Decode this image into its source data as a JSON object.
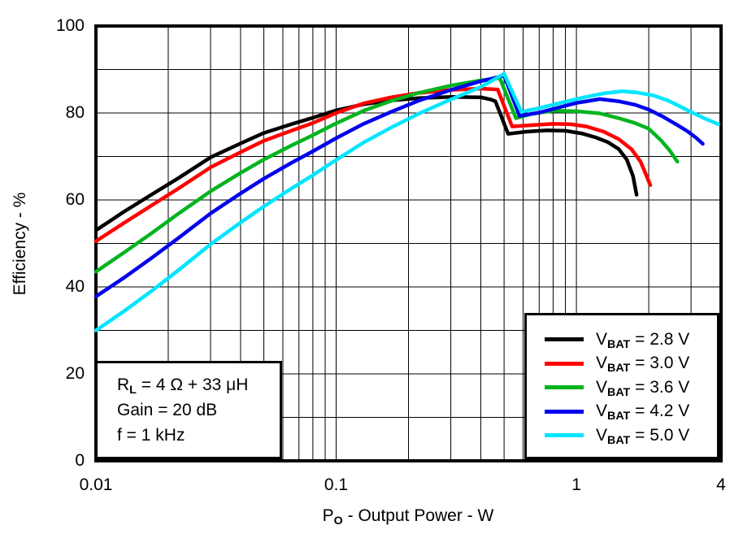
{
  "page": {
    "background": "#ffffff"
  },
  "axes": {
    "x": {
      "title_prefix": "P",
      "title_sub": "O",
      "title_rest": " - Output Power - W",
      "scale": "log"
    },
    "y": {
      "title": "Efficiency - %"
    }
  },
  "conditions_box": {
    "line1_prefix": "R",
    "line1_sub": "L",
    "line1_rest": " = 4 Ω + 33 μH",
    "line2": "Gain = 20 dB",
    "line3": "f = 1 kHz"
  },
  "legend": {
    "entries": [
      {
        "id": "vbat-2.8",
        "prefix": "V",
        "sub": "BAT",
        "rest": " = 2.8 V",
        "color": "#000000"
      },
      {
        "id": "vbat-3.0",
        "prefix": "V",
        "sub": "BAT",
        "rest": " = 3.0 V",
        "color": "#ff0000"
      },
      {
        "id": "vbat-3.6",
        "prefix": "V",
        "sub": "BAT",
        "rest": " = 3.6 V",
        "color": "#00b41e"
      },
      {
        "id": "vbat-4.2",
        "prefix": "V",
        "sub": "BAT",
        "rest": " = 4.2 V",
        "color": "#0000ee"
      },
      {
        "id": "vbat-5.0",
        "prefix": "V",
        "sub": "BAT",
        "rest": " = 5.0 V",
        "color": "#00e6ff"
      }
    ]
  },
  "chart_data": {
    "type": "line",
    "title": "",
    "xlabel": "PO - Output Power - W",
    "ylabel": "Efficiency - %",
    "xscale": "log",
    "xlim": [
      0.01,
      4
    ],
    "ylim": [
      0,
      100
    ],
    "grid": true,
    "legend_position": "lower right",
    "xticks": [
      "0.01",
      "0.1",
      "1",
      "4"
    ],
    "yticks": [
      "0",
      "20",
      "40",
      "60",
      "80",
      "100"
    ],
    "x_gridlines": [
      0.02,
      0.03,
      0.04,
      0.05,
      0.06,
      0.07,
      0.08,
      0.09,
      0.1,
      0.2,
      0.3,
      0.4,
      0.5,
      0.6,
      0.7,
      0.8,
      0.9,
      1,
      2,
      3
    ],
    "y_gridlines": [
      10,
      20,
      30,
      40,
      50,
      60,
      70,
      80,
      90
    ],
    "series": [
      {
        "id": "vbat-2.8",
        "name": "VBAT = 2.8 V",
        "color": "#000000",
        "points": [
          [
            0.01,
            53
          ],
          [
            0.013,
            57.2
          ],
          [
            0.017,
            61.2
          ],
          [
            0.022,
            65
          ],
          [
            0.03,
            69.8
          ],
          [
            0.04,
            73
          ],
          [
            0.05,
            75.4
          ],
          [
            0.065,
            77.4
          ],
          [
            0.08,
            78.9
          ],
          [
            0.1,
            80.6
          ],
          [
            0.13,
            82
          ],
          [
            0.17,
            82.9
          ],
          [
            0.22,
            83.4
          ],
          [
            0.3,
            83.7
          ],
          [
            0.4,
            83.6
          ],
          [
            0.44,
            83.1
          ],
          [
            0.46,
            82.7
          ],
          [
            0.52,
            75.2
          ],
          [
            0.62,
            75.7
          ],
          [
            0.75,
            76
          ],
          [
            0.9,
            75.9
          ],
          [
            1.05,
            75.3
          ],
          [
            1.2,
            74.4
          ],
          [
            1.35,
            73.3
          ],
          [
            1.5,
            71.7
          ],
          [
            1.62,
            69.3
          ],
          [
            1.72,
            65.5
          ],
          [
            1.78,
            61.2
          ]
        ]
      },
      {
        "id": "vbat-3.0",
        "name": "VBAT = 3.0 V",
        "color": "#ff0000",
        "points": [
          [
            0.01,
            50.5
          ],
          [
            0.013,
            54.6
          ],
          [
            0.017,
            58.7
          ],
          [
            0.022,
            62.6
          ],
          [
            0.03,
            67.5
          ],
          [
            0.04,
            71
          ],
          [
            0.05,
            73.6
          ],
          [
            0.065,
            75.9
          ],
          [
            0.08,
            77.7
          ],
          [
            0.1,
            80
          ],
          [
            0.13,
            82.2
          ],
          [
            0.17,
            83.6
          ],
          [
            0.22,
            84.6
          ],
          [
            0.3,
            85.3
          ],
          [
            0.4,
            85.6
          ],
          [
            0.47,
            85.4
          ],
          [
            0.54,
            76.9
          ],
          [
            0.65,
            77.2
          ],
          [
            0.8,
            77.5
          ],
          [
            0.95,
            77.4
          ],
          [
            1.1,
            76.9
          ],
          [
            1.3,
            75.7
          ],
          [
            1.5,
            74
          ],
          [
            1.7,
            71.6
          ],
          [
            1.85,
            68.8
          ],
          [
            1.97,
            65.2
          ],
          [
            2.03,
            63.4
          ]
        ]
      },
      {
        "id": "vbat-3.6",
        "name": "VBAT = 3.6 V",
        "color": "#00b41e",
        "points": [
          [
            0.01,
            43.5
          ],
          [
            0.013,
            47.8
          ],
          [
            0.017,
            52.3
          ],
          [
            0.022,
            56.8
          ],
          [
            0.03,
            62
          ],
          [
            0.04,
            66.2
          ],
          [
            0.05,
            69.3
          ],
          [
            0.065,
            72.5
          ],
          [
            0.08,
            74.9
          ],
          [
            0.1,
            77.6
          ],
          [
            0.13,
            80.5
          ],
          [
            0.17,
            82.8
          ],
          [
            0.22,
            84.6
          ],
          [
            0.3,
            86.3
          ],
          [
            0.4,
            87.5
          ],
          [
            0.48,
            88
          ],
          [
            0.56,
            78.8
          ],
          [
            0.65,
            79.8
          ],
          [
            0.8,
            80.5
          ],
          [
            1.0,
            80.4
          ],
          [
            1.25,
            79.9
          ],
          [
            1.5,
            78.8
          ],
          [
            1.75,
            77.7
          ],
          [
            2.0,
            76.4
          ],
          [
            2.25,
            73.7
          ],
          [
            2.45,
            71.3
          ],
          [
            2.63,
            68.8
          ]
        ]
      },
      {
        "id": "vbat-4.2",
        "name": "VBAT = 4.2 V",
        "color": "#0000ee",
        "points": [
          [
            0.01,
            37.8
          ],
          [
            0.013,
            42
          ],
          [
            0.017,
            46.6
          ],
          [
            0.022,
            51.2
          ],
          [
            0.03,
            56.9
          ],
          [
            0.04,
            61.5
          ],
          [
            0.05,
            64.9
          ],
          [
            0.065,
            68.5
          ],
          [
            0.08,
            71.2
          ],
          [
            0.1,
            74.2
          ],
          [
            0.13,
            77.5
          ],
          [
            0.17,
            80.3
          ],
          [
            0.22,
            82.8
          ],
          [
            0.3,
            85.3
          ],
          [
            0.4,
            87.3
          ],
          [
            0.5,
            88.6
          ],
          [
            0.58,
            79.3
          ],
          [
            0.7,
            80.1
          ],
          [
            0.85,
            81.3
          ],
          [
            1.0,
            82.3
          ],
          [
            1.25,
            83.2
          ],
          [
            1.5,
            82.7
          ],
          [
            1.75,
            81.9
          ],
          [
            2.0,
            80.8
          ],
          [
            2.3,
            79.1
          ],
          [
            2.6,
            77.4
          ],
          [
            2.9,
            75.8
          ],
          [
            3.15,
            74.3
          ],
          [
            3.36,
            72.9
          ]
        ]
      },
      {
        "id": "vbat-5.0",
        "name": "VBAT = 5.0 V",
        "color": "#00e6ff",
        "points": [
          [
            0.01,
            30
          ],
          [
            0.013,
            34.3
          ],
          [
            0.017,
            39
          ],
          [
            0.022,
            43.8
          ],
          [
            0.03,
            49.8
          ],
          [
            0.04,
            54.8
          ],
          [
            0.05,
            58.5
          ],
          [
            0.065,
            62.6
          ],
          [
            0.08,
            65.7
          ],
          [
            0.1,
            69.2
          ],
          [
            0.13,
            73.2
          ],
          [
            0.17,
            76.7
          ],
          [
            0.22,
            79.8
          ],
          [
            0.3,
            83.1
          ],
          [
            0.4,
            86
          ],
          [
            0.5,
            89
          ],
          [
            0.59,
            80.3
          ],
          [
            0.7,
            81.1
          ],
          [
            0.9,
            82.6
          ],
          [
            1.1,
            83.7
          ],
          [
            1.3,
            84.5
          ],
          [
            1.55,
            85
          ],
          [
            1.8,
            84.7
          ],
          [
            2.1,
            84
          ],
          [
            2.4,
            82.9
          ],
          [
            2.7,
            81.5
          ],
          [
            3.0,
            80.2
          ],
          [
            3.4,
            78.8
          ],
          [
            3.9,
            77.4
          ]
        ]
      }
    ]
  }
}
